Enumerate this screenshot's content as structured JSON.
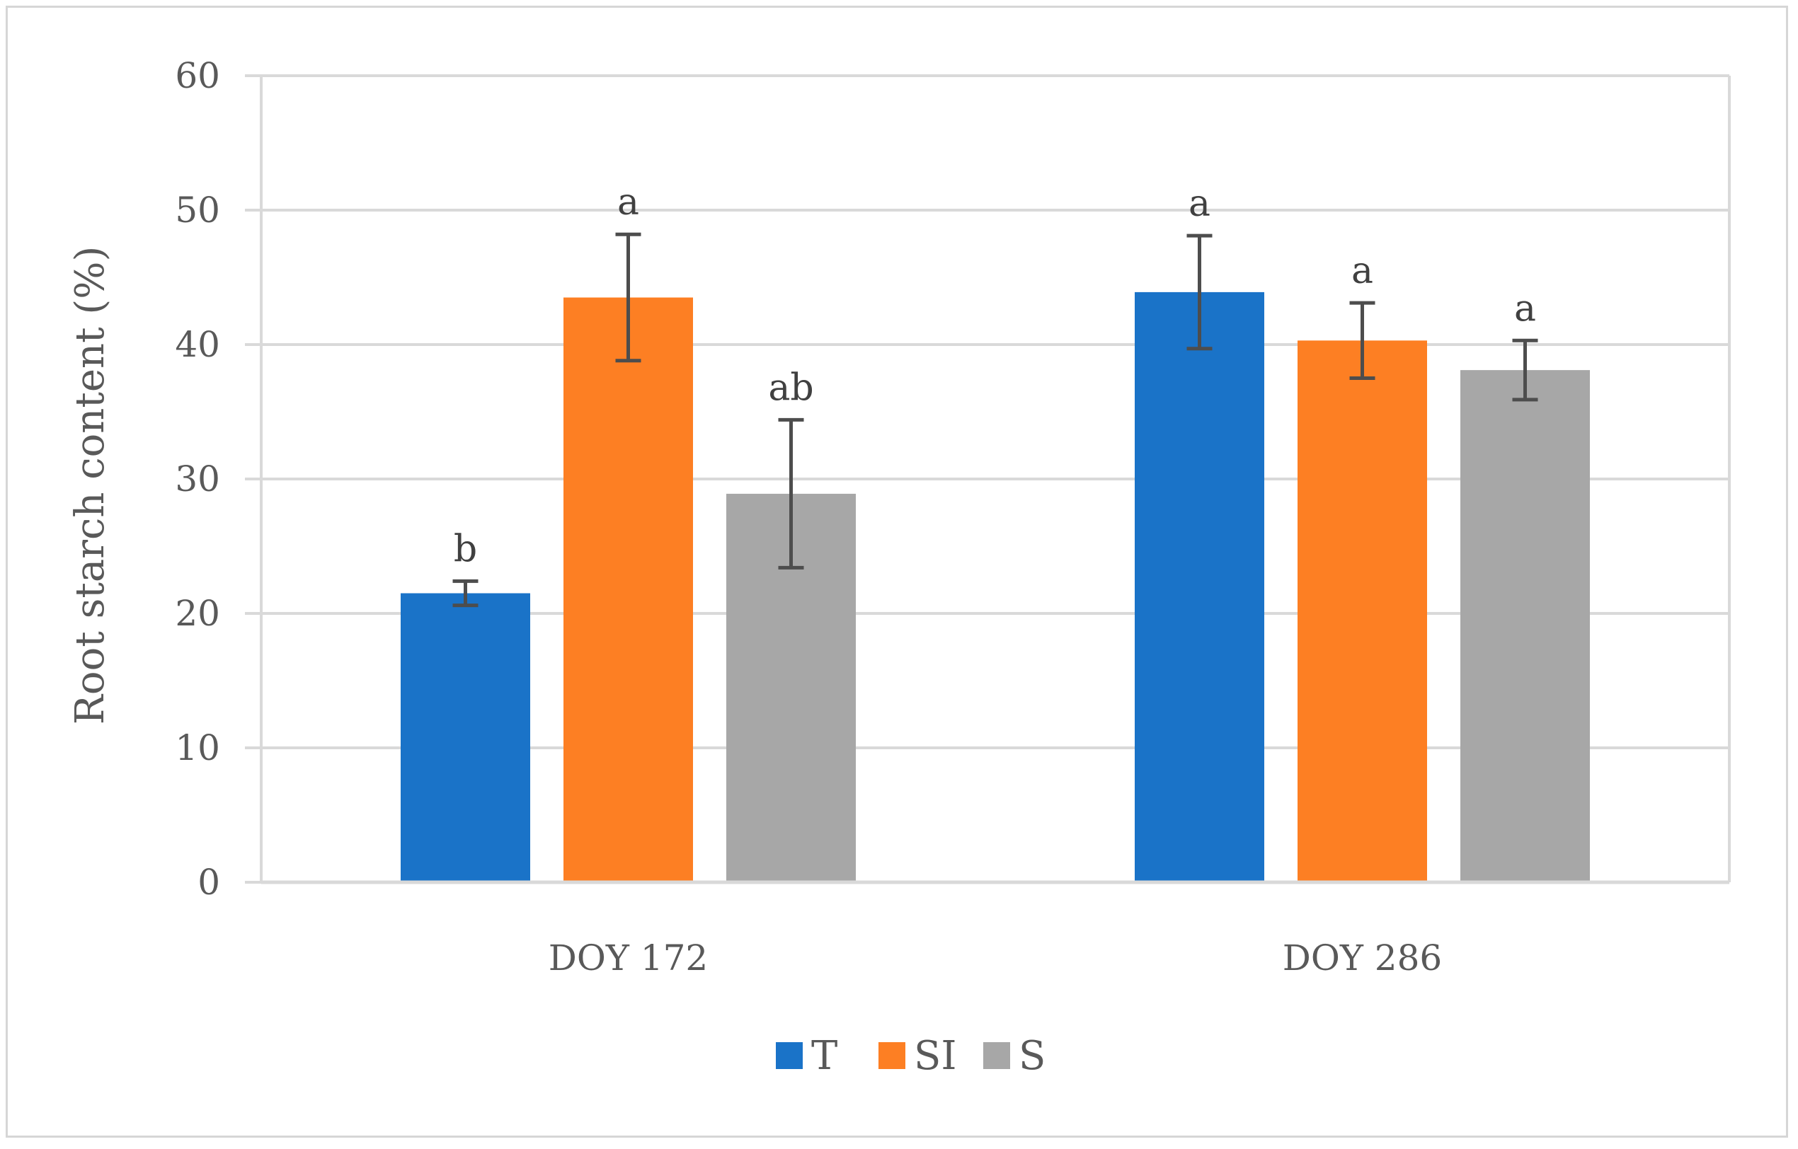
{
  "chart_data": {
    "type": "bar",
    "title": "",
    "xlabel": "",
    "ylabel": "Root starch content  (%)",
    "ylim": [
      0,
      60
    ],
    "yticks": [
      0,
      10,
      20,
      30,
      40,
      50,
      60
    ],
    "grid": true,
    "legend_position": "bottom",
    "categories": [
      "DOY 172",
      "DOY 286"
    ],
    "series": [
      {
        "name": "T",
        "color": "#1a73c8",
        "values": [
          21.5,
          43.9
        ],
        "errors": [
          0.9,
          4.2
        ],
        "significance": [
          "b",
          "a"
        ]
      },
      {
        "name": "SI",
        "color": "#fd7f23",
        "values": [
          43.5,
          40.3
        ],
        "errors": [
          4.7,
          2.8
        ],
        "significance": [
          "a",
          "a"
        ]
      },
      {
        "name": "S",
        "color": "#a7a7a7",
        "values": [
          28.9,
          38.1
        ],
        "errors": [
          5.5,
          2.2
        ],
        "significance": [
          "ab",
          "a"
        ]
      }
    ]
  }
}
